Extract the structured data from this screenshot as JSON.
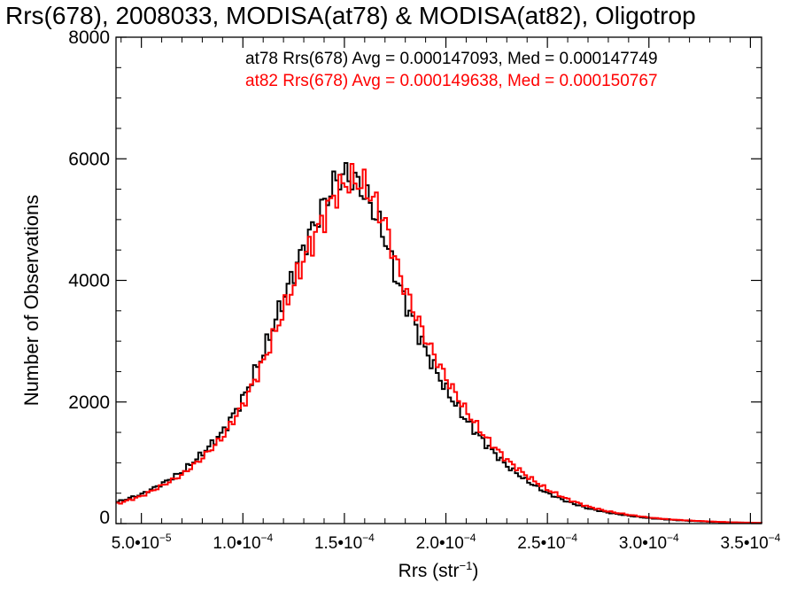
{
  "chart_data": {
    "type": "line",
    "title": "Rrs(678), 2008033, MODISA(at78) & MODISA(at82), Oligotrop",
    "xlabel_main": "Rrs (str",
    "xlabel_exp": "−1",
    "xlabel_close": ")",
    "ylabel": "Number of Observations",
    "xlim": [
      3.75e-05,
      0.0003555
    ],
    "ylim": [
      0,
      8000
    ],
    "grid": false,
    "legend_position": "top-right",
    "x_ticks": [
      {
        "value": 5e-05,
        "mant": "5.0•10",
        "exp": "−5"
      },
      {
        "value": 0.0001,
        "mant": "1.0•10",
        "exp": "−4"
      },
      {
        "value": 0.00015,
        "mant": "1.5•10",
        "exp": "−4"
      },
      {
        "value": 0.0002,
        "mant": "2.0•10",
        "exp": "−4"
      },
      {
        "value": 0.00025,
        "mant": "2.5•10",
        "exp": "−4"
      },
      {
        "value": 0.0003,
        "mant": "3.0•10",
        "exp": "−4"
      },
      {
        "value": 0.00035,
        "mant": "3.5•10",
        "exp": "−4"
      }
    ],
    "y_ticks": [
      {
        "value": 0,
        "label": "0"
      },
      {
        "value": 2000,
        "label": "2000"
      },
      {
        "value": 4000,
        "label": "4000"
      },
      {
        "value": 6000,
        "label": "6000"
      },
      {
        "value": 8000,
        "label": "8000"
      }
    ],
    "annotations": [
      {
        "text": "at78 Rrs(678) Avg = 0.000147093, Med = 0.000147749",
        "color": "#000000"
      },
      {
        "text": "at82 Rrs(678) Avg = 0.000149638, Med = 0.000150767",
        "color": "#ff0000"
      }
    ],
    "series": [
      {
        "color": "#000000",
        "x": [
          3.75e-05,
          5e-05,
          6e-05,
          7e-05,
          8e-05,
          9e-05,
          0.0001,
          0.00011,
          0.00012,
          0.00013,
          0.00014,
          0.000145,
          0.00015,
          0.000155,
          0.00016,
          0.000165,
          0.00017,
          0.000175,
          0.00018,
          0.00019,
          0.0002,
          0.00021,
          0.00022,
          0.00023,
          0.00024,
          0.00025,
          0.00026,
          0.00027,
          0.00028,
          0.00029,
          0.0003,
          0.00031,
          0.00032,
          0.00033,
          0.00034,
          0.00035,
          0.0003555
        ],
        "y": [
          350,
          480,
          650,
          850,
          1150,
          1500,
          2050,
          2800,
          3700,
          4550,
          5250,
          5600,
          5750,
          5650,
          5450,
          5100,
          4700,
          4100,
          3650,
          2850,
          2200,
          1700,
          1300,
          950,
          700,
          500,
          360,
          250,
          180,
          130,
          90,
          65,
          45,
          30,
          20,
          12,
          10
        ]
      },
      {
        "color": "#ff0000",
        "x": [
          3.75e-05,
          5e-05,
          6e-05,
          7e-05,
          8e-05,
          9e-05,
          0.0001,
          0.00011,
          0.00012,
          0.00013,
          0.00014,
          0.000145,
          0.00015,
          0.000155,
          0.00016,
          0.000165,
          0.00017,
          0.000175,
          0.00018,
          0.00019,
          0.0002,
          0.00021,
          0.00022,
          0.00023,
          0.00024,
          0.00025,
          0.00026,
          0.00027,
          0.00028,
          0.00029,
          0.0003,
          0.00031,
          0.00032,
          0.00033,
          0.00034,
          0.00035,
          0.0003555
        ],
        "y": [
          320,
          450,
          620,
          800,
          1080,
          1420,
          1950,
          2650,
          3500,
          4350,
          5050,
          5400,
          5600,
          5650,
          5550,
          5300,
          4950,
          4350,
          3850,
          3050,
          2400,
          1850,
          1400,
          1050,
          780,
          560,
          400,
          280,
          200,
          145,
          100,
          70,
          50,
          35,
          22,
          14,
          10
        ]
      }
    ]
  }
}
